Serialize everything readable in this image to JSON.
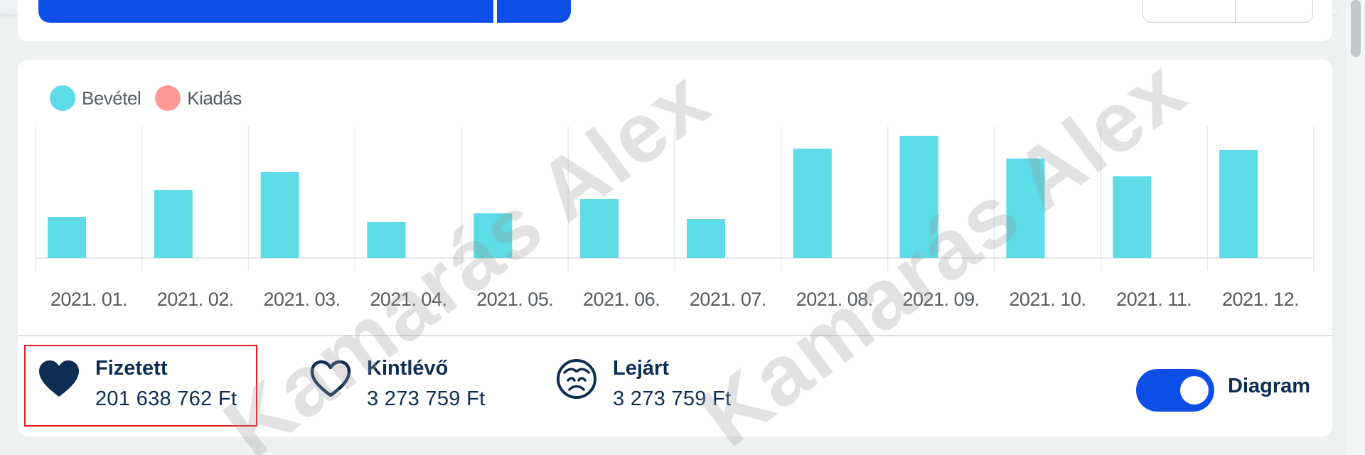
{
  "legend": [
    {
      "label": "Bevétel",
      "color": "#5ddbe7"
    },
    {
      "label": "Kiadás",
      "color": "#fd9994"
    }
  ],
  "chart_data": {
    "type": "bar",
    "categories": [
      "2021. 01.",
      "2021. 02.",
      "2021. 03.",
      "2021. 04.",
      "2021. 05.",
      "2021. 06.",
      "2021. 07.",
      "2021. 08.",
      "2021. 09.",
      "2021. 10.",
      "2021. 11.",
      "2021. 12."
    ],
    "series": [
      {
        "name": "Bevétel",
        "color": "#5ddbe7",
        "values": [
          58,
          96,
          121,
          51,
          63,
          83,
          55,
          154,
          172,
          140,
          115,
          152
        ]
      },
      {
        "name": "Kiadás",
        "color": "#fd9994",
        "values": [
          0,
          0,
          0,
          0,
          0,
          0,
          0,
          0,
          0,
          0,
          0,
          0
        ]
      }
    ],
    "ylim": [
      0,
      185
    ],
    "grid": "vertical",
    "legend_position": "top-left"
  },
  "summary": {
    "paid": {
      "label": "Fizetett",
      "value": "201 638 762 Ft",
      "icon": "heart-filled-icon"
    },
    "outstanding": {
      "label": "Kintlévő",
      "value": "3 273 759 Ft",
      "icon": "heart-outline-icon"
    },
    "overdue": {
      "label": "Lejárt",
      "value": "3 273 759 Ft",
      "icon": "sad-face-icon"
    }
  },
  "toggle": {
    "label": "Diagram",
    "on": true
  },
  "watermark": "Kamarás Alex"
}
